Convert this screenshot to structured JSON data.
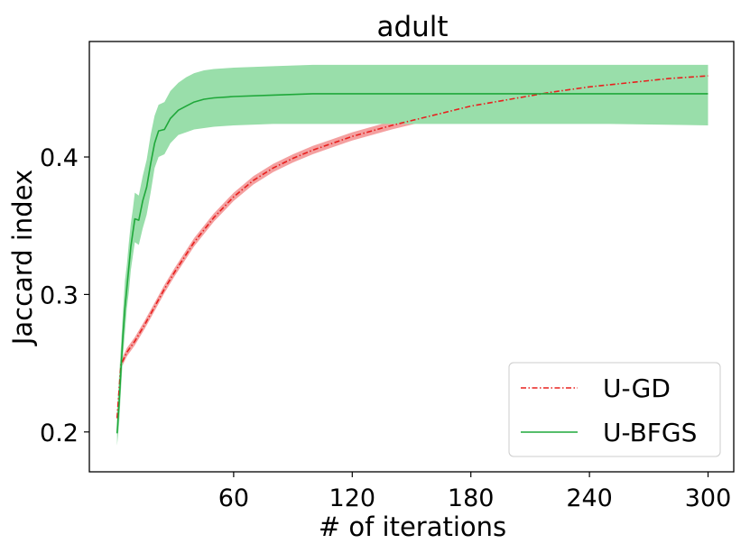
{
  "chart_data": {
    "type": "line",
    "title": "adult",
    "xlabel": "# of iterations",
    "ylabel": "Jaccard index",
    "xlim": [
      -13,
      313
    ],
    "ylim": [
      0.171,
      0.484
    ],
    "xticks": [
      60,
      120,
      180,
      240,
      300
    ],
    "xtick_labels": [
      "60",
      "120",
      "180",
      "240",
      "300"
    ],
    "yticks": [
      0.2,
      0.3,
      0.4
    ],
    "ytick_labels": [
      "0.2",
      "0.3",
      "0.4"
    ],
    "grid": false,
    "legend_position": "bottom-right",
    "series": [
      {
        "name": "U-GD",
        "color": "#e8201e",
        "band_color": "#f4a0a0",
        "line_style": "dashdot",
        "x": [
          1,
          3,
          6,
          10,
          15,
          20,
          25,
          30,
          40,
          50,
          60,
          70,
          80,
          90,
          100,
          110,
          120,
          140,
          160,
          180,
          200,
          220,
          240,
          260,
          280,
          300
        ],
        "y": [
          0.21,
          0.249,
          0.258,
          0.266,
          0.278,
          0.291,
          0.304,
          0.316,
          0.338,
          0.356,
          0.371,
          0.383,
          0.392,
          0.399,
          0.405,
          0.41,
          0.415,
          0.423,
          0.43,
          0.437,
          0.442,
          0.447,
          0.451,
          0.454,
          0.457,
          0.459
        ],
        "lower": [
          0.208,
          0.246,
          0.255,
          0.263,
          0.275,
          0.288,
          0.301,
          0.313,
          0.335,
          0.353,
          0.368,
          0.38,
          0.389,
          0.396,
          0.402,
          0.407,
          0.412,
          0.42,
          0.427,
          0.434,
          0.439,
          0.444,
          0.448,
          0.451,
          0.454,
          0.456
        ],
        "upper": [
          0.213,
          0.252,
          0.261,
          0.269,
          0.281,
          0.294,
          0.307,
          0.319,
          0.341,
          0.359,
          0.374,
          0.386,
          0.395,
          0.402,
          0.408,
          0.413,
          0.418,
          0.426,
          0.433,
          0.44,
          0.445,
          0.45,
          0.454,
          0.457,
          0.46,
          0.462
        ]
      },
      {
        "name": "U-BFGS",
        "color": "#1fa83a",
        "band_color": "#99deaa",
        "line_style": "solid",
        "x": [
          1,
          2,
          3,
          4,
          5,
          6,
          7,
          8,
          9,
          10,
          12,
          14,
          16,
          18,
          20,
          22,
          25,
          28,
          32,
          36,
          40,
          45,
          50,
          60,
          80,
          100,
          150,
          200,
          250,
          300
        ],
        "y": [
          0.199,
          0.22,
          0.245,
          0.27,
          0.29,
          0.305,
          0.32,
          0.335,
          0.345,
          0.355,
          0.354,
          0.368,
          0.378,
          0.395,
          0.41,
          0.419,
          0.42,
          0.428,
          0.434,
          0.437,
          0.44,
          0.442,
          0.443,
          0.444,
          0.445,
          0.446,
          0.446,
          0.446,
          0.446,
          0.446
        ],
        "lower": [
          0.19,
          0.205,
          0.23,
          0.255,
          0.272,
          0.29,
          0.302,
          0.318,
          0.328,
          0.338,
          0.336,
          0.348,
          0.358,
          0.374,
          0.392,
          0.4,
          0.402,
          0.41,
          0.416,
          0.418,
          0.42,
          0.421,
          0.422,
          0.423,
          0.424,
          0.424,
          0.424,
          0.424,
          0.424,
          0.423
        ],
        "upper": [
          0.215,
          0.24,
          0.262,
          0.287,
          0.31,
          0.322,
          0.338,
          0.352,
          0.362,
          0.374,
          0.372,
          0.386,
          0.398,
          0.416,
          0.43,
          0.438,
          0.44,
          0.448,
          0.454,
          0.458,
          0.461,
          0.463,
          0.464,
          0.465,
          0.466,
          0.467,
          0.467,
          0.467,
          0.467,
          0.467
        ]
      }
    ]
  }
}
